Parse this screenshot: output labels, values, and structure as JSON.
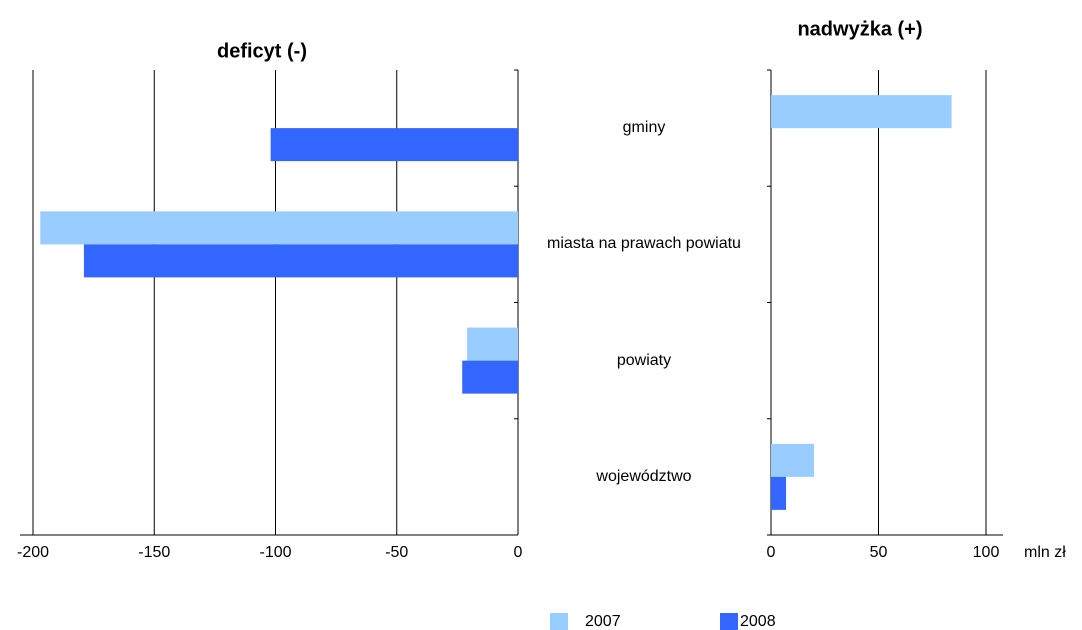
{
  "chart_data": {
    "type": "bar",
    "orientation": "horizontal",
    "categories": [
      "gminy",
      "miasta na prawach powiatu",
      "powiaty",
      "województwo"
    ],
    "series": [
      {
        "name": "2007",
        "color": "#99ccff",
        "values": [
          84,
          -197,
          -21,
          20
        ]
      },
      {
        "name": "2008",
        "color": "#3366ff",
        "values": [
          -102,
          -179,
          -23,
          7
        ]
      }
    ],
    "panels": [
      {
        "title": "deficyt (-)",
        "xlim": [
          -200,
          0
        ],
        "xticks": [
          -200,
          -150,
          -100,
          -50,
          0
        ]
      },
      {
        "title": "nadwyżka (+)",
        "xlim": [
          0,
          100
        ],
        "xticks": [
          0,
          50,
          100
        ]
      }
    ],
    "unit_label": "mln zł",
    "grid": true
  }
}
